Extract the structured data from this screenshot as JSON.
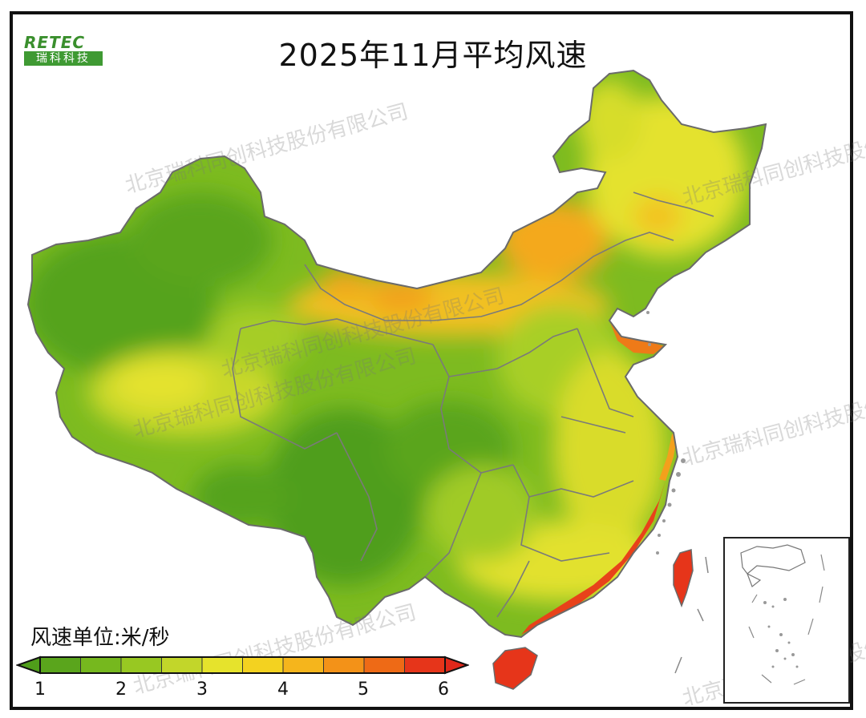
{
  "title": "2025年11月平均风速",
  "logo": {
    "top_text": "RETEC",
    "bottom_text": "瑞科科技"
  },
  "legend": {
    "unit_label": "风速单位:米/秒",
    "ticks": [
      "1",
      "2",
      "3",
      "4",
      "5",
      "6"
    ],
    "colors": [
      "#5aa51c",
      "#76b81e",
      "#98c822",
      "#c2d62a",
      "#e6e32c",
      "#f3d220",
      "#f5b51c",
      "#f39218",
      "#ee6a16",
      "#e6351a"
    ]
  },
  "watermarks": [
    "北京瑞科同创科技股份有限公司",
    "北京瑞科同创科技股份有限公司",
    "北京瑞科同创科技股份有限公司",
    "北京瑞科同创科技股份有限公司",
    "北京瑞科同创科技股份有限公司",
    "北京瑞科同创科技股份有限公司",
    "北京瑞科同创科技股份有限公司"
  ]
}
